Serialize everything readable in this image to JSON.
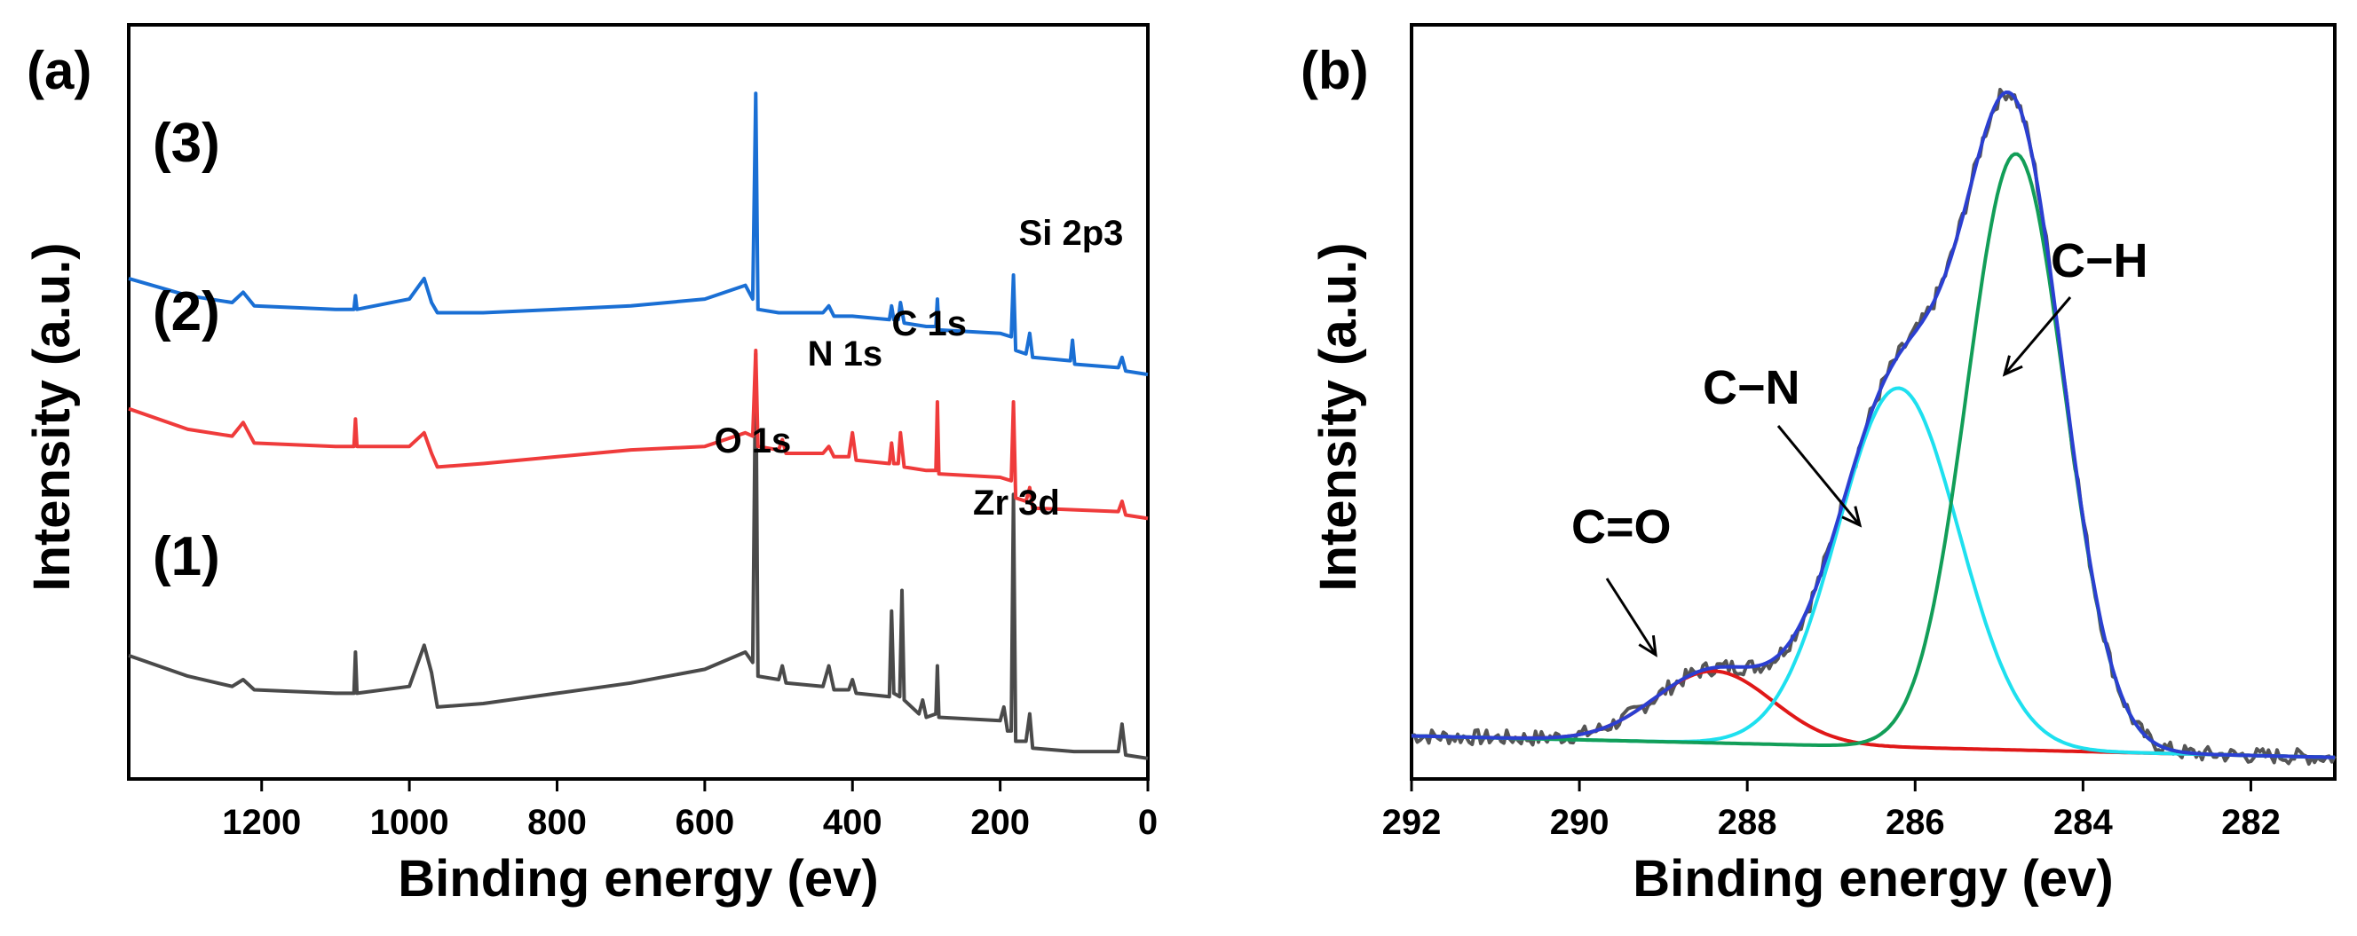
{
  "figure": {
    "panel_a_label": "(a)",
    "panel_b_label": "(b)"
  },
  "chart_data": [
    {
      "type": "line",
      "panel": "(a)",
      "xlabel": "Binding energy (ev)",
      "ylabel": "Intensity (a.u.)",
      "xlim": [
        1380,
        0
      ],
      "x_reversed": true,
      "xticks": [
        1200,
        1000,
        800,
        600,
        400,
        200,
        0
      ],
      "y_units": "arbitrary",
      "ylim": [
        -0.5,
        10.5
      ],
      "series": [
        {
          "name": "(1)",
          "color": "#4a4a4a",
          "points": [
            [
              1380,
              1.3
            ],
            [
              1300,
              1.0
            ],
            [
              1240,
              0.85
            ],
            [
              1225,
              0.95
            ],
            [
              1210,
              0.8
            ],
            [
              1100,
              0.75
            ],
            [
              1075,
              0.75
            ],
            [
              1073,
              1.35
            ],
            [
              1071,
              0.75
            ],
            [
              1000,
              0.85
            ],
            [
              980,
              1.45
            ],
            [
              970,
              1.05
            ],
            [
              962,
              0.55
            ],
            [
              900,
              0.6
            ],
            [
              800,
              0.75
            ],
            [
              700,
              0.9
            ],
            [
              600,
              1.1
            ],
            [
              545,
              1.35
            ],
            [
              535,
              1.2
            ],
            [
              531,
              5.7
            ],
            [
              528,
              1.0
            ],
            [
              500,
              0.95
            ],
            [
              495,
              1.15
            ],
            [
              490,
              0.9
            ],
            [
              440,
              0.85
            ],
            [
              432,
              1.15
            ],
            [
              425,
              0.8
            ],
            [
              405,
              0.8
            ],
            [
              400,
              0.95
            ],
            [
              395,
              0.75
            ],
            [
              350,
              0.7
            ],
            [
              347,
              1.95
            ],
            [
              344,
              0.75
            ],
            [
              336,
              0.7
            ],
            [
              333,
              2.25
            ],
            [
              330,
              0.65
            ],
            [
              310,
              0.45
            ],
            [
              305,
              0.65
            ],
            [
              300,
              0.4
            ],
            [
              287,
              0.45
            ],
            [
              285,
              1.15
            ],
            [
              283,
              0.4
            ],
            [
              200,
              0.35
            ],
            [
              195,
              0.55
            ],
            [
              190,
              0.2
            ],
            [
              185,
              0.2
            ],
            [
              182,
              3.65
            ],
            [
              179,
              0.05
            ],
            [
              165,
              0.05
            ],
            [
              160,
              0.45
            ],
            [
              156,
              -0.05
            ],
            [
              100,
              -0.1
            ],
            [
              40,
              -0.1
            ],
            [
              35,
              0.3
            ],
            [
              30,
              -0.15
            ],
            [
              0,
              -0.2
            ]
          ]
        },
        {
          "name": "(2)",
          "color": "#ef3b3b",
          "points": [
            [
              1380,
              4.9
            ],
            [
              1300,
              4.6
            ],
            [
              1240,
              4.5
            ],
            [
              1225,
              4.7
            ],
            [
              1210,
              4.4
            ],
            [
              1100,
              4.35
            ],
            [
              1075,
              4.35
            ],
            [
              1073,
              4.75
            ],
            [
              1071,
              4.35
            ],
            [
              1000,
              4.35
            ],
            [
              980,
              4.55
            ],
            [
              970,
              4.25
            ],
            [
              962,
              4.05
            ],
            [
              900,
              4.1
            ],
            [
              800,
              4.2
            ],
            [
              700,
              4.3
            ],
            [
              600,
              4.35
            ],
            [
              545,
              4.55
            ],
            [
              535,
              4.5
            ],
            [
              531,
              5.75
            ],
            [
              528,
              4.35
            ],
            [
              500,
              4.3
            ],
            [
              495,
              4.45
            ],
            [
              490,
              4.25
            ],
            [
              440,
              4.25
            ],
            [
              432,
              4.35
            ],
            [
              425,
              4.2
            ],
            [
              405,
              4.2
            ],
            [
              400,
              4.55
            ],
            [
              395,
              4.15
            ],
            [
              350,
              4.1
            ],
            [
              347,
              4.4
            ],
            [
              344,
              4.1
            ],
            [
              338,
              4.1
            ],
            [
              335,
              4.55
            ],
            [
              330,
              4.05
            ],
            [
              300,
              4.0
            ],
            [
              287,
              4.0
            ],
            [
              285,
              5.0
            ],
            [
              283,
              3.95
            ],
            [
              200,
              3.9
            ],
            [
              185,
              3.85
            ],
            [
              182,
              5.0
            ],
            [
              179,
              3.6
            ],
            [
              165,
              3.55
            ],
            [
              160,
              3.75
            ],
            [
              156,
              3.45
            ],
            [
              40,
              3.4
            ],
            [
              35,
              3.55
            ],
            [
              30,
              3.35
            ],
            [
              0,
              3.3
            ]
          ]
        },
        {
          "name": "(3)",
          "color": "#1a6fd4",
          "points": [
            [
              1380,
              6.8
            ],
            [
              1300,
              6.55
            ],
            [
              1240,
              6.45
            ],
            [
              1225,
              6.6
            ],
            [
              1210,
              6.4
            ],
            [
              1100,
              6.35
            ],
            [
              1075,
              6.35
            ],
            [
              1073,
              6.55
            ],
            [
              1071,
              6.35
            ],
            [
              1000,
              6.5
            ],
            [
              980,
              6.8
            ],
            [
              970,
              6.45
            ],
            [
              962,
              6.3
            ],
            [
              900,
              6.3
            ],
            [
              800,
              6.35
            ],
            [
              700,
              6.4
            ],
            [
              600,
              6.5
            ],
            [
              545,
              6.7
            ],
            [
              535,
              6.5
            ],
            [
              531,
              9.5
            ],
            [
              528,
              6.35
            ],
            [
              500,
              6.3
            ],
            [
              440,
              6.3
            ],
            [
              432,
              6.4
            ],
            [
              425,
              6.25
            ],
            [
              400,
              6.25
            ],
            [
              350,
              6.2
            ],
            [
              347,
              6.4
            ],
            [
              344,
              6.2
            ],
            [
              338,
              6.2
            ],
            [
              335,
              6.45
            ],
            [
              330,
              6.15
            ],
            [
              300,
              6.1
            ],
            [
              287,
              6.1
            ],
            [
              285,
              6.5
            ],
            [
              283,
              6.05
            ],
            [
              200,
              6.0
            ],
            [
              185,
              5.95
            ],
            [
              182,
              6.85
            ],
            [
              179,
              5.75
            ],
            [
              165,
              5.7
            ],
            [
              160,
              6.0
            ],
            [
              156,
              5.65
            ],
            [
              105,
              5.6
            ],
            [
              102,
              5.9
            ],
            [
              99,
              5.55
            ],
            [
              40,
              5.5
            ],
            [
              35,
              5.65
            ],
            [
              30,
              5.45
            ],
            [
              0,
              5.4
            ]
          ]
        }
      ],
      "sample_labels": [
        "(1)",
        "(2)",
        "(3)"
      ],
      "annotations": [
        {
          "text": "O 1s",
          "x": 535
        },
        {
          "text": "N 1s",
          "x": 410
        },
        {
          "text": "C 1s",
          "x": 296
        },
        {
          "text": "Zr 3d",
          "x": 178
        },
        {
          "text": "Si 2p3",
          "x": 104
        }
      ]
    },
    {
      "type": "line",
      "panel": "(b)",
      "xlabel": "Binding energy (ev)",
      "ylabel": "Intensity (a.u.)",
      "xlim": [
        292,
        281
      ],
      "x_reversed": true,
      "xticks": [
        292,
        290,
        288,
        286,
        284,
        282
      ],
      "y_units": "arbitrary",
      "ylim": [
        0,
        1.05
      ],
      "background": {
        "start": 0.06,
        "end": 0.03
      },
      "components": [
        {
          "name": "C=O",
          "color": "#e01818",
          "center": 288.4,
          "height": 0.1,
          "sigma": 0.7
        },
        {
          "name": "C−N",
          "color": "#1ee0ef",
          "center": 286.2,
          "height": 0.5,
          "sigma": 0.72
        },
        {
          "name": "C−H",
          "color": "#129e58",
          "center": 284.8,
          "height": 0.83,
          "sigma": 0.58
        }
      ],
      "envelope_color": "#2b3fd1",
      "raw_color": "#555555",
      "annotations": [
        {
          "text": "C=O",
          "x": 289.0
        },
        {
          "text": "C−N",
          "x": 286.6
        },
        {
          "text": "C−H",
          "x": 284.9
        }
      ]
    }
  ]
}
